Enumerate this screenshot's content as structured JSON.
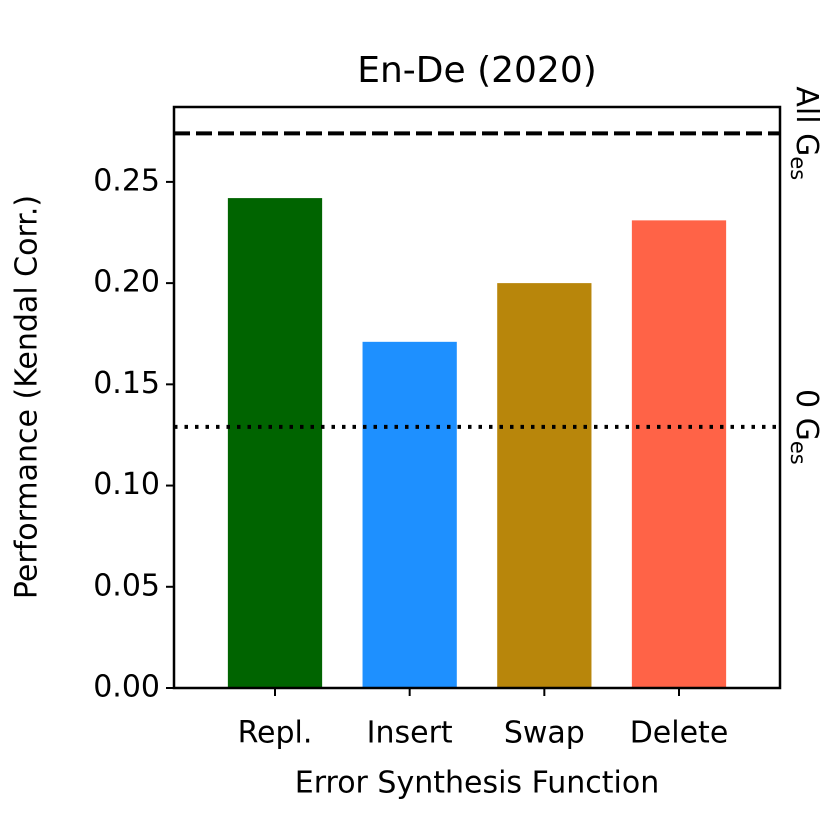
{
  "chart_data": {
    "type": "bar",
    "title": "En-De (2020)",
    "x_label": "Error Synthesis Function",
    "y_label": "Performance (Kendal Corr.)",
    "categories": [
      "Repl.",
      "Insert",
      "Swap",
      "Delete"
    ],
    "values": [
      0.242,
      0.171,
      0.2,
      0.231
    ],
    "colors": [
      "#006400",
      "#1e90ff",
      "#b8860b",
      "#ff6347"
    ],
    "ylim": [
      0,
      0.287
    ],
    "yticks": [
      {
        "value": 0,
        "label": "0.00"
      },
      {
        "value": 0.05,
        "label": "0.05"
      },
      {
        "value": 0.1,
        "label": "0.10"
      },
      {
        "value": 0.15,
        "label": "0.15"
      },
      {
        "value": 0.2,
        "label": "0.20"
      },
      {
        "value": 0.25,
        "label": "0.25"
      }
    ],
    "reference_lines": [
      {
        "value": 0.274,
        "style": "dashed",
        "label": "All G",
        "subscript": "es"
      },
      {
        "value": 0.129,
        "style": "dotted",
        "label": "0 G",
        "subscript": "es"
      }
    ]
  }
}
